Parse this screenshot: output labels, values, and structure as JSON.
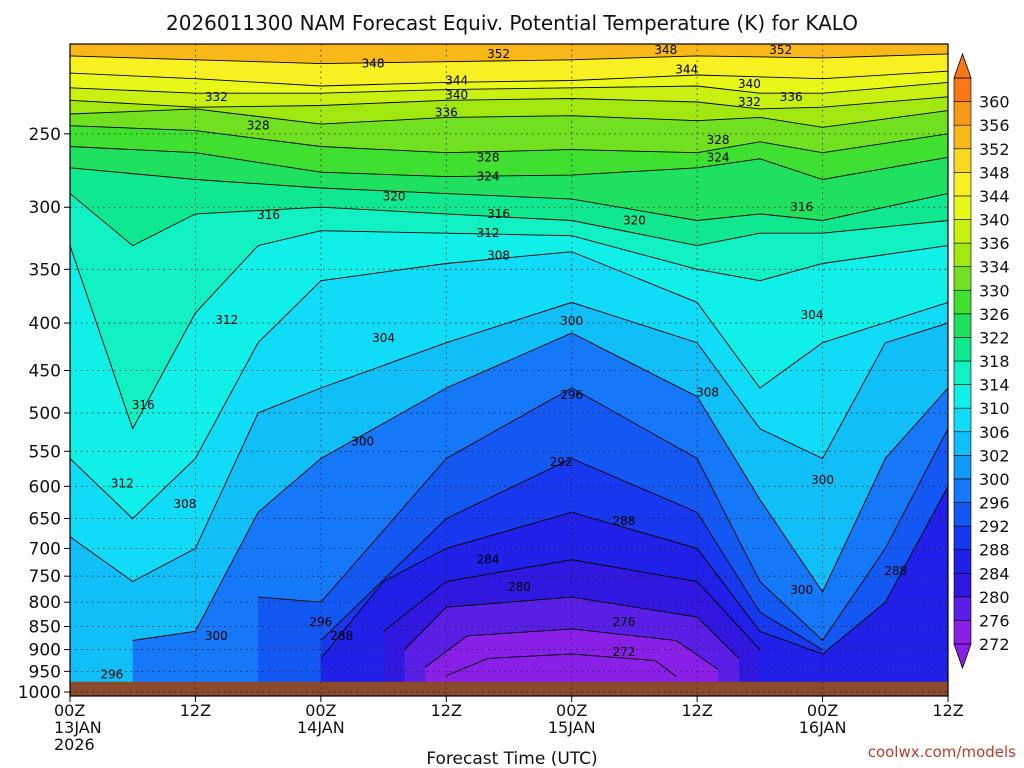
{
  "chart_data": {
    "type": "heatmap",
    "title": "2026011300 NAM Forecast Equiv. Potential Temperature (K) for KALO",
    "xlabel": "Forecast Time (UTC)",
    "ylabel": "",
    "credit": "coolwx.com/models",
    "x_range_hours": [
      0,
      84
    ],
    "x_ticks": [
      {
        "hour": 0,
        "lines": [
          "00Z",
          "13JAN",
          "2026"
        ]
      },
      {
        "hour": 12,
        "lines": [
          "12Z"
        ]
      },
      {
        "hour": 24,
        "lines": [
          "00Z",
          "14JAN"
        ]
      },
      {
        "hour": 36,
        "lines": [
          "12Z"
        ]
      },
      {
        "hour": 48,
        "lines": [
          "00Z",
          "15JAN"
        ]
      },
      {
        "hour": 60,
        "lines": [
          "12Z"
        ]
      },
      {
        "hour": 72,
        "lines": [
          "00Z",
          "16JAN"
        ]
      },
      {
        "hour": 84,
        "lines": [
          "12Z"
        ]
      }
    ],
    "y_scale": "log-pressure (hPa), inverted",
    "y_range_hpa": [
      1010,
      200
    ],
    "y_ticks": [
      250,
      300,
      350,
      400,
      450,
      500,
      550,
      600,
      650,
      700,
      750,
      800,
      850,
      900,
      950,
      1000
    ],
    "grid": true,
    "ground_level_hpa": 975,
    "ground_color": "#8b4a2b",
    "colorbar": {
      "levels": [
        272,
        276,
        280,
        284,
        288,
        292,
        296,
        300,
        302,
        306,
        310,
        314,
        318,
        322,
        326,
        330,
        334,
        336,
        340,
        344,
        348,
        352,
        356,
        360
      ],
      "colors": [
        "#8a1fe8",
        "#5a1fe6",
        "#3018e0",
        "#2020e8",
        "#1838f0",
        "#1458f4",
        "#1478f8",
        "#109af8",
        "#10bef8",
        "#10dcf8",
        "#10f0e8",
        "#10f0c0",
        "#10e890",
        "#20e060",
        "#40e030",
        "#70e020",
        "#a0e810",
        "#c8f010",
        "#e8f818",
        "#f8f020",
        "#f8d820",
        "#f8b818",
        "#f89818",
        "#f87818"
      ],
      "position": "right",
      "extend": "both"
    },
    "field_notes": "Theta-e (K) vs forecast hour and pressure; cold core (272-288 K) in lower levels 24-72h, warm moist air (304-316 K) in mid-levels early and late; 340-352 K near 200 hPa.",
    "isolines": [
      {
        "value": 348,
        "points": [
          [
            0,
            206
          ],
          [
            12,
            208
          ],
          [
            24,
            210
          ],
          [
            36,
            209
          ],
          [
            48,
            208
          ],
          [
            60,
            206
          ],
          [
            72,
            207
          ],
          [
            84,
            205
          ]
        ]
      },
      {
        "value": 344,
        "points": [
          [
            0,
            215
          ],
          [
            12,
            218
          ],
          [
            24,
            222
          ],
          [
            36,
            220
          ],
          [
            48,
            219
          ],
          [
            60,
            216
          ],
          [
            72,
            218
          ],
          [
            84,
            214
          ]
        ]
      },
      {
        "value": 340,
        "points": [
          [
            0,
            223
          ],
          [
            12,
            226
          ],
          [
            24,
            226
          ],
          [
            36,
            224
          ],
          [
            48,
            223
          ],
          [
            60,
            222
          ],
          [
            66,
            226
          ],
          [
            72,
            226
          ],
          [
            84,
            220
          ]
        ]
      },
      {
        "value": 336,
        "points": [
          [
            0,
            230
          ],
          [
            12,
            234
          ],
          [
            24,
            233
          ],
          [
            36,
            230
          ],
          [
            48,
            229
          ],
          [
            60,
            231
          ],
          [
            66,
            235
          ],
          [
            72,
            234
          ],
          [
            84,
            228
          ]
        ]
      },
      {
        "value": 332,
        "points": [
          [
            0,
            238
          ],
          [
            12,
            235
          ],
          [
            24,
            244
          ],
          [
            36,
            240
          ],
          [
            48,
            239
          ],
          [
            60,
            242
          ],
          [
            66,
            240
          ],
          [
            72,
            246
          ],
          [
            84,
            236
          ]
        ]
      },
      {
        "value": 328,
        "points": [
          [
            0,
            245
          ],
          [
            12,
            248
          ],
          [
            24,
            258
          ],
          [
            36,
            262
          ],
          [
            48,
            260
          ],
          [
            60,
            262
          ],
          [
            66,
            255
          ],
          [
            72,
            262
          ],
          [
            84,
            250
          ]
        ]
      },
      {
        "value": 324,
        "points": [
          [
            0,
            258
          ],
          [
            12,
            262
          ],
          [
            24,
            275
          ],
          [
            36,
            278
          ],
          [
            48,
            277
          ],
          [
            60,
            272
          ],
          [
            66,
            266
          ],
          [
            72,
            280
          ],
          [
            84,
            265
          ]
        ]
      },
      {
        "value": 320,
        "points": [
          [
            0,
            272
          ],
          [
            12,
            280
          ],
          [
            24,
            286
          ],
          [
            36,
            290
          ],
          [
            48,
            294
          ],
          [
            60,
            310
          ],
          [
            66,
            305
          ],
          [
            72,
            310
          ],
          [
            84,
            290
          ]
        ]
      },
      {
        "value": 316,
        "points": [
          [
            0,
            290
          ],
          [
            6,
            330
          ],
          [
            12,
            305
          ],
          [
            24,
            300
          ],
          [
            36,
            305
          ],
          [
            48,
            310
          ],
          [
            60,
            330
          ],
          [
            66,
            320
          ],
          [
            72,
            320
          ],
          [
            84,
            310
          ]
        ]
      },
      {
        "value": 312,
        "points": [
          [
            0,
            330
          ],
          [
            6,
            520
          ],
          [
            12,
            390
          ],
          [
            18,
            330
          ],
          [
            24,
            318
          ],
          [
            36,
            320
          ],
          [
            48,
            322
          ],
          [
            60,
            350
          ],
          [
            66,
            360
          ],
          [
            72,
            345
          ],
          [
            84,
            330
          ]
        ]
      },
      {
        "value": 308,
        "points": [
          [
            0,
            560
          ],
          [
            6,
            650
          ],
          [
            12,
            560
          ],
          [
            18,
            420
          ],
          [
            24,
            360
          ],
          [
            36,
            345
          ],
          [
            48,
            335
          ],
          [
            60,
            380
          ],
          [
            66,
            470
          ],
          [
            72,
            420
          ],
          [
            84,
            380
          ]
        ]
      },
      {
        "value": 304,
        "points": [
          [
            0,
            680
          ],
          [
            6,
            760
          ],
          [
            12,
            700
          ],
          [
            18,
            500
          ],
          [
            24,
            470
          ],
          [
            36,
            420
          ],
          [
            48,
            380
          ],
          [
            60,
            420
          ],
          [
            66,
            520
          ],
          [
            72,
            560
          ],
          [
            78,
            420
          ],
          [
            84,
            400
          ]
        ]
      },
      {
        "value": 300,
        "points": [
          [
            6,
            880
          ],
          [
            12,
            860
          ],
          [
            18,
            640
          ],
          [
            24,
            560
          ],
          [
            36,
            470
          ],
          [
            48,
            410
          ],
          [
            60,
            480
          ],
          [
            66,
            620
          ],
          [
            72,
            780
          ],
          [
            78,
            560
          ],
          [
            84,
            470
          ]
        ]
      },
      {
        "value": 296,
        "points": [
          [
            18,
            790
          ],
          [
            24,
            800
          ],
          [
            36,
            560
          ],
          [
            48,
            470
          ],
          [
            60,
            560
          ],
          [
            66,
            760
          ],
          [
            72,
            880
          ],
          [
            78,
            700
          ],
          [
            84,
            520
          ]
        ]
      },
      {
        "value": 292,
        "points": [
          [
            24,
            880
          ],
          [
            36,
            650
          ],
          [
            48,
            560
          ],
          [
            60,
            640
          ],
          [
            66,
            820
          ],
          [
            72,
            900
          ]
        ]
      },
      {
        "value": 288,
        "points": [
          [
            24,
            920
          ],
          [
            30,
            760
          ],
          [
            36,
            700
          ],
          [
            48,
            640
          ],
          [
            60,
            700
          ],
          [
            66,
            860
          ],
          [
            72,
            910
          ],
          [
            78,
            800
          ],
          [
            84,
            600
          ]
        ]
      },
      {
        "value": 284,
        "points": [
          [
            30,
            860
          ],
          [
            36,
            760
          ],
          [
            48,
            720
          ],
          [
            60,
            760
          ],
          [
            66,
            900
          ]
        ]
      },
      {
        "value": 280,
        "points": [
          [
            32,
            900
          ],
          [
            36,
            810
          ],
          [
            48,
            790
          ],
          [
            60,
            830
          ],
          [
            64,
            920
          ]
        ]
      },
      {
        "value": 276,
        "points": [
          [
            34,
            940
          ],
          [
            38,
            870
          ],
          [
            48,
            855
          ],
          [
            58,
            880
          ],
          [
            62,
            945
          ]
        ]
      },
      {
        "value": 272,
        "points": [
          [
            36,
            960
          ],
          [
            40,
            920
          ],
          [
            48,
            910
          ],
          [
            56,
            925
          ],
          [
            58,
            962
          ]
        ]
      }
    ],
    "contour_labels": [
      {
        "hour": 29,
        "p": 210,
        "text": "348"
      },
      {
        "hour": 41,
        "p": 205,
        "text": "352"
      },
      {
        "hour": 57,
        "p": 203,
        "text": "348"
      },
      {
        "hour": 68,
        "p": 203,
        "text": "352"
      },
      {
        "hour": 59,
        "p": 213,
        "text": "344"
      },
      {
        "hour": 37,
        "p": 219,
        "text": "344"
      },
      {
        "hour": 37,
        "p": 227,
        "text": "340"
      },
      {
        "hour": 65,
        "p": 221,
        "text": "340"
      },
      {
        "hour": 36,
        "p": 237,
        "text": "336"
      },
      {
        "hour": 69,
        "p": 228,
        "text": "336"
      },
      {
        "hour": 14,
        "p": 228,
        "text": "332"
      },
      {
        "hour": 65,
        "p": 231,
        "text": "332"
      },
      {
        "hour": 18,
        "p": 245,
        "text": "328"
      },
      {
        "hour": 40,
        "p": 265,
        "text": "328"
      },
      {
        "hour": 62,
        "p": 254,
        "text": "328"
      },
      {
        "hour": 40,
        "p": 278,
        "text": "324"
      },
      {
        "hour": 62,
        "p": 265,
        "text": "324"
      },
      {
        "hour": 31,
        "p": 292,
        "text": "320"
      },
      {
        "hour": 54,
        "p": 310,
        "text": "320"
      },
      {
        "hour": 19,
        "p": 306,
        "text": "316"
      },
      {
        "hour": 41,
        "p": 305,
        "text": "316"
      },
      {
        "hour": 70,
        "p": 300,
        "text": "316"
      },
      {
        "hour": 40,
        "p": 320,
        "text": "312"
      },
      {
        "hour": 15,
        "p": 397,
        "text": "312"
      },
      {
        "hour": 41,
        "p": 338,
        "text": "308"
      },
      {
        "hour": 30,
        "p": 415,
        "text": "304"
      },
      {
        "hour": 71,
        "p": 392,
        "text": "304"
      },
      {
        "hour": 48,
        "p": 398,
        "text": "300"
      },
      {
        "hour": 61,
        "p": 475,
        "text": "308"
      },
      {
        "hour": 7,
        "p": 490,
        "text": "316"
      },
      {
        "hour": 28,
        "p": 537,
        "text": "300"
      },
      {
        "hour": 48,
        "p": 478,
        "text": "296"
      },
      {
        "hour": 47,
        "p": 565,
        "text": "292"
      },
      {
        "hour": 5,
        "p": 596,
        "text": "312"
      },
      {
        "hour": 11,
        "p": 627,
        "text": "308"
      },
      {
        "hour": 72,
        "p": 591,
        "text": "300"
      },
      {
        "hour": 53,
        "p": 654,
        "text": "288"
      },
      {
        "hour": 40,
        "p": 720,
        "text": "284"
      },
      {
        "hour": 43,
        "p": 770,
        "text": "280"
      },
      {
        "hour": 79,
        "p": 740,
        "text": "288"
      },
      {
        "hour": 70,
        "p": 776,
        "text": "300"
      },
      {
        "hour": 14,
        "p": 870,
        "text": "300"
      },
      {
        "hour": 24,
        "p": 840,
        "text": "296"
      },
      {
        "hour": 26,
        "p": 870,
        "text": "288"
      },
      {
        "hour": 53,
        "p": 840,
        "text": "276"
      },
      {
        "hour": 53,
        "p": 905,
        "text": "272"
      },
      {
        "hour": 4,
        "p": 957,
        "text": "296"
      }
    ]
  }
}
